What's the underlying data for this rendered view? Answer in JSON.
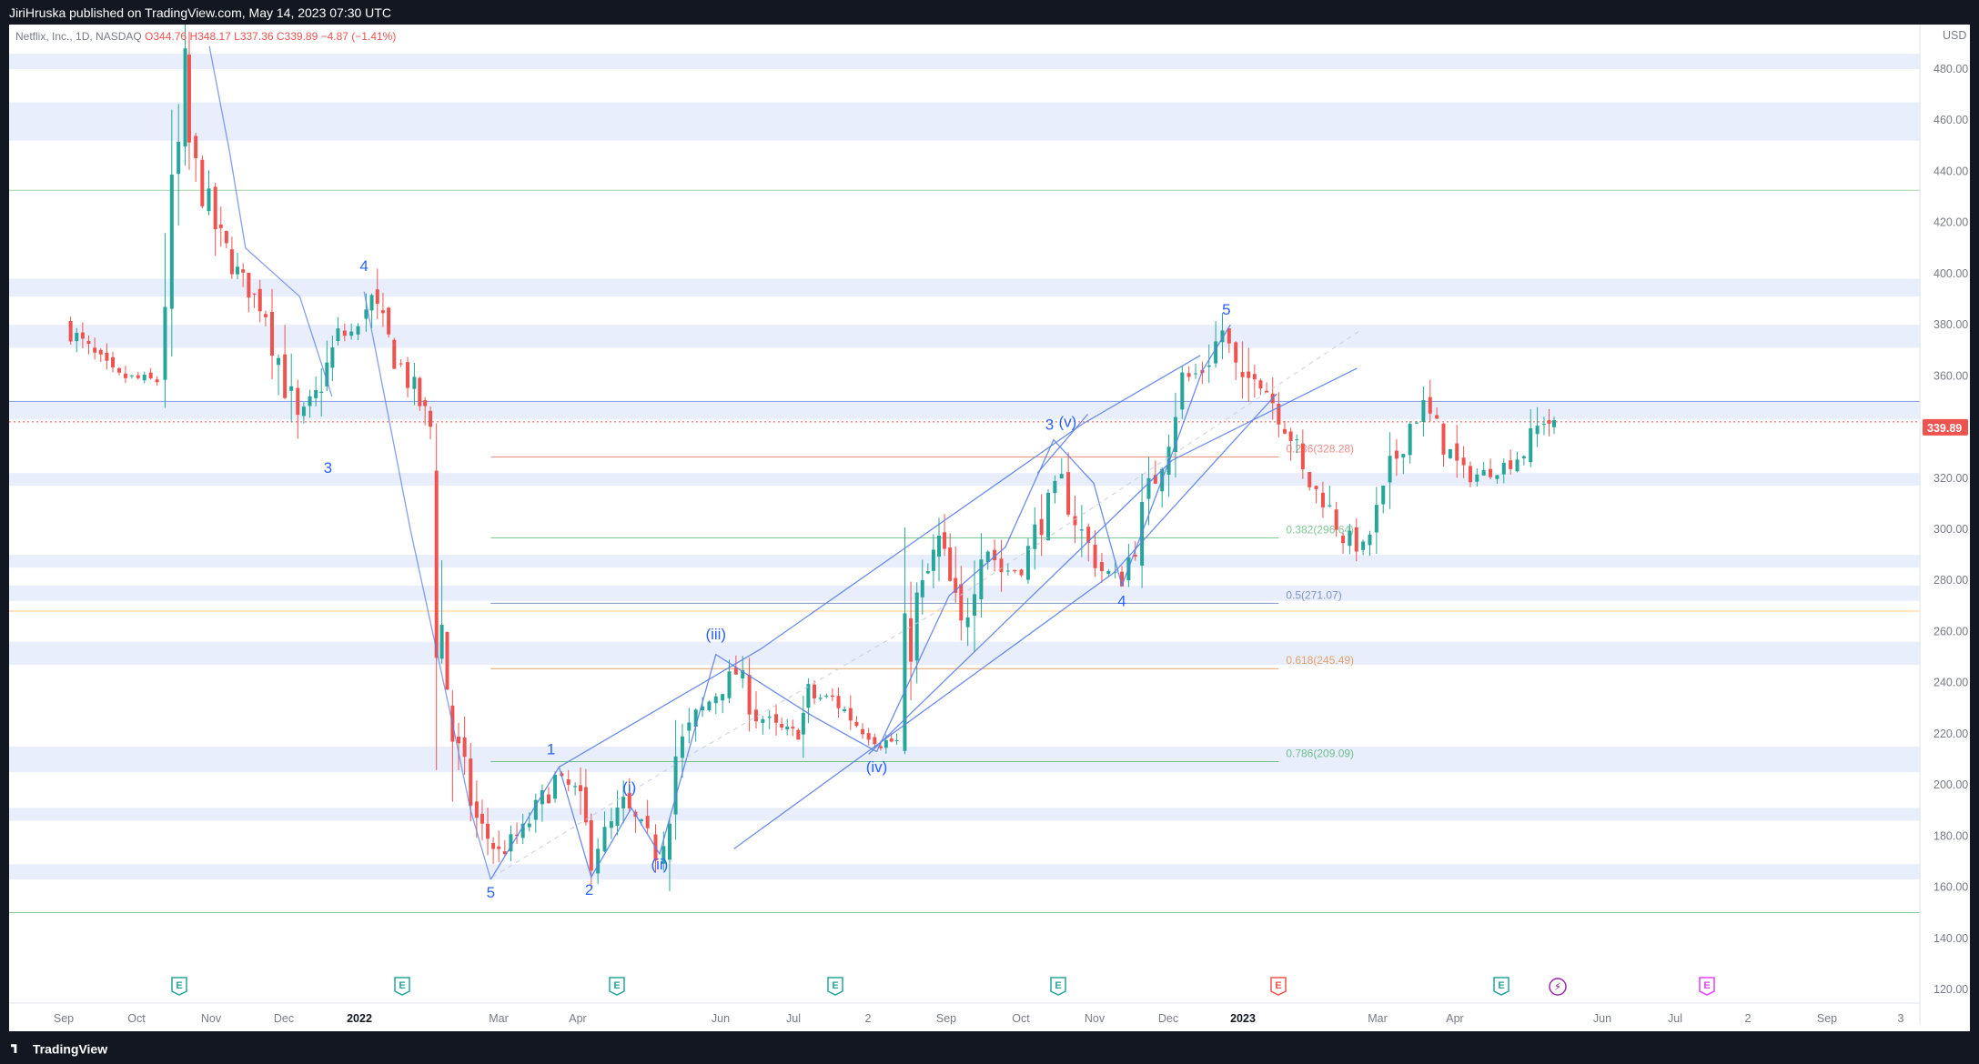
{
  "header": {
    "publisher_line": "JiriHruska published on TradingView.com, May 14, 2023 07:30 UTC"
  },
  "legend": {
    "symbol": "Netflix, Inc., 1D, NASDAQ",
    "open": "O344.76",
    "high": "H348.17",
    "low": "L337.36",
    "close": "C339.89",
    "change": "−4.87 (−1.41%)"
  },
  "footer": {
    "brand": "TradingView"
  },
  "colors": {
    "up": "#26a69a",
    "down": "#ef5350",
    "zone": "#e8eefc",
    "wave": "#2962ff",
    "channel": "#5b7fe8"
  },
  "chart_data": {
    "type": "candlestick",
    "currency": "USD",
    "ylim": [
      115,
      489
    ],
    "y_ticks": [
      "480.00",
      "460.00",
      "440.00",
      "420.00",
      "400.00",
      "380.00",
      "360.00",
      "340.00",
      "320.00",
      "300.00",
      "280.00",
      "260.00",
      "240.00",
      "220.00",
      "200.00",
      "180.00",
      "160.00",
      "140.00",
      "120.00"
    ],
    "x_ticks": [
      "Sep",
      "Oct",
      "Nov",
      "Dec",
      "2022",
      "Mar",
      "Apr",
      "Jun",
      "Jul",
      "2",
      "Sep",
      "Oct",
      "Nov",
      "Dec",
      "2023",
      "Mar",
      "Apr",
      "Jun",
      "Jul",
      "2",
      "Sep",
      "3"
    ],
    "last_price": {
      "value": 339.89,
      "label": "339.89"
    },
    "price_path": [
      [
        0.0,
        380
      ],
      [
        2.4,
        360
      ],
      [
        4.6,
        358
      ],
      [
        5.0,
        398
      ],
      [
        6.0,
        470
      ],
      [
        6.2,
        448
      ],
      [
        7.5,
        418
      ],
      [
        8.6,
        400
      ],
      [
        10.0,
        385
      ],
      [
        11.6,
        340
      ],
      [
        12.5,
        352
      ],
      [
        13.6,
        375
      ],
      [
        14.6,
        378
      ],
      [
        15.0,
        395
      ],
      [
        16.4,
        368
      ],
      [
        17.4,
        354
      ],
      [
        18.2,
        340
      ],
      [
        18.5,
        281
      ],
      [
        19.3,
        220
      ],
      [
        20.5,
        186
      ],
      [
        21.6,
        173
      ],
      [
        22.8,
        182
      ],
      [
        24.4,
        202
      ],
      [
        25.4,
        198
      ],
      [
        26.2,
        174
      ],
      [
        27.2,
        184
      ],
      [
        27.8,
        192
      ],
      [
        29.0,
        179
      ],
      [
        29.4,
        174
      ],
      [
        29.8,
        182
      ],
      [
        30.4,
        212
      ],
      [
        31.4,
        226
      ],
      [
        32.4,
        236
      ],
      [
        33.4,
        244
      ],
      [
        34.4,
        228
      ],
      [
        35.4,
        222
      ],
      [
        36.5,
        220
      ],
      [
        37.0,
        234
      ],
      [
        38.2,
        234
      ],
      [
        39.4,
        224
      ],
      [
        40.6,
        217
      ],
      [
        41.4,
        217
      ],
      [
        41.8,
        245
      ],
      [
        42.4,
        270
      ],
      [
        43.5,
        295
      ],
      [
        44.6,
        260
      ],
      [
        45.6,
        298
      ],
      [
        46.6,
        284
      ],
      [
        47.6,
        284
      ],
      [
        48.6,
        305
      ],
      [
        49.6,
        318
      ],
      [
        50.6,
        298
      ],
      [
        51.6,
        284
      ],
      [
        52.6,
        280
      ],
      [
        53.6,
        305
      ],
      [
        54.6,
        330
      ],
      [
        55.6,
        358
      ],
      [
        56.6,
        362
      ],
      [
        57.6,
        378
      ],
      [
        58.6,
        352
      ],
      [
        59.2,
        365
      ],
      [
        59.8,
        355
      ],
      [
        61.0,
        337
      ],
      [
        61.6,
        320
      ],
      [
        62.6,
        312
      ],
      [
        63.6,
        298
      ],
      [
        64.6,
        292
      ],
      [
        65.6,
        312
      ],
      [
        66.6,
        338
      ],
      [
        67.6,
        348
      ],
      [
        68.6,
        334
      ],
      [
        69.6,
        320
      ],
      [
        70.6,
        322
      ],
      [
        71.6,
        325
      ],
      [
        72.6,
        330
      ],
      [
        73.6,
        344
      ],
      [
        74.1,
        339.89
      ]
    ],
    "series": [
      {
        "name": "",
        "points": [
          [
            7.2,
            489
          ],
          [
            8.2,
            448
          ],
          [
            9.0,
            410
          ],
          [
            11.7,
            391
          ],
          [
            13.3,
            352
          ]
        ]
      },
      {
        "name": "",
        "points": [
          [
            14.9,
            393
          ],
          [
            17.2,
            300
          ],
          [
            18.3,
            260
          ],
          [
            19.3,
            224
          ],
          [
            20.2,
            190
          ],
          [
            21.2,
            163
          ]
        ]
      },
      {
        "name": "",
        "points": [
          [
            21.2,
            163
          ],
          [
            24.6,
            207
          ],
          [
            26.2,
            164
          ],
          [
            28.2,
            191
          ],
          [
            29.6,
            173
          ],
          [
            32.4,
            251
          ],
          [
            34.4,
            241
          ],
          [
            37.2,
            227
          ],
          [
            40.4,
            213
          ]
        ]
      },
      {
        "name": "",
        "points": [
          [
            40.4,
            213
          ],
          [
            44.0,
            274
          ],
          [
            46.8,
            293
          ],
          [
            49.2,
            335
          ],
          [
            51.2,
            318
          ],
          [
            52.6,
            278
          ],
          [
            55.4,
            336
          ],
          [
            56.6,
            362
          ],
          [
            58.0,
            380
          ]
        ]
      },
      {
        "name": "",
        "points": [
          [
            24.6,
            207
          ],
          [
            34.6,
            253
          ],
          [
            50.6,
            341
          ],
          [
            56.5,
            368
          ]
        ]
      },
      {
        "name": "",
        "points": [
          [
            33.3,
            175
          ],
          [
            52.2,
            283
          ],
          [
            60.3,
            353
          ]
        ]
      },
      {
        "name": "",
        "points": [
          [
            40.0,
            212
          ],
          [
            55.1,
            327
          ],
          [
            64.3,
            363
          ]
        ]
      },
      {
        "name": "",
        "points": [
          [
            48.4,
            322
          ],
          [
            50.9,
            345
          ]
        ]
      },
      {
        "name": "",
        "points": [
          [
            21.3,
            164
          ],
          [
            31.2,
            212
          ],
          [
            43.0,
            266
          ],
          [
            64.5,
            378
          ]
        ]
      }
    ],
    "annotations": [
      {
        "text": "4",
        "x": 14.9,
        "y": 401
      },
      {
        "text": "3",
        "x": 13.1,
        "y": 322
      },
      {
        "text": "5",
        "x": 21.2,
        "y": 156
      },
      {
        "text": "1",
        "x": 24.2,
        "y": 212
      },
      {
        "text": "2",
        "x": 26.1,
        "y": 157
      },
      {
        "text": "(i)",
        "x": 28.1,
        "y": 197
      },
      {
        "text": "(ii)",
        "x": 29.6,
        "y": 167
      },
      {
        "text": "(iii)",
        "x": 32.4,
        "y": 257
      },
      {
        "text": "(iv)",
        "x": 40.4,
        "y": 205
      },
      {
        "text": "3",
        "x": 49.0,
        "y": 339
      },
      {
        "text": "(v)",
        "x": 49.9,
        "y": 340
      },
      {
        "text": "4",
        "x": 52.6,
        "y": 270
      },
      {
        "text": "5",
        "x": 57.8,
        "y": 384
      }
    ],
    "horizontal_levels": [
      350.0,
      342.0,
      432.6,
      268.0,
      150.0
    ],
    "fibonacci": {
      "x_range": [
        21.2,
        60.4
      ],
      "levels": [
        {
          "ratio": "0.236",
          "label": "0.236(328.28)",
          "price": 328.28,
          "color": "#ef8f88"
        },
        {
          "ratio": "0.382",
          "label": "0.382(296.64)",
          "price": 296.64,
          "color": "#81c995"
        },
        {
          "ratio": "0.5",
          "label": "0.5(271.07)",
          "price": 271.07,
          "color": "#7e93c4"
        },
        {
          "ratio": "0.618",
          "label": "0.618(245.49)",
          "price": 245.49,
          "color": "#e0a26a"
        },
        {
          "ratio": "0.786",
          "label": "0.786(209.09)",
          "price": 209.09,
          "color": "#6fbf8e"
        }
      ]
    },
    "zones": [
      {
        "from": 486,
        "to": 480
      },
      {
        "from": 467,
        "to": 452
      },
      {
        "from": 398,
        "to": 391
      },
      {
        "from": 380,
        "to": 371
      },
      {
        "from": 350,
        "to": 343
      },
      {
        "from": 322,
        "to": 317
      },
      {
        "from": 290,
        "to": 285
      },
      {
        "from": 278,
        "to": 272
      },
      {
        "from": 256,
        "to": 247
      },
      {
        "from": 215,
        "to": 205
      },
      {
        "from": 191,
        "to": 186
      },
      {
        "from": 169,
        "to": 163
      }
    ],
    "events": [
      {
        "type": "earnings",
        "label": "E",
        "x": 3.4
      },
      {
        "type": "earnings",
        "label": "E",
        "x": 8.0
      },
      {
        "type": "earnings",
        "label": "E",
        "x": 12.5
      },
      {
        "type": "earnings",
        "label": "E",
        "x": 17.2
      },
      {
        "type": "earnings",
        "label": "E",
        "x": 22.0
      },
      {
        "type": "earnings_up",
        "label": "E",
        "x": 26.7
      },
      {
        "type": "earnings",
        "label": "E",
        "x": 31.3
      },
      {
        "type": "dividend",
        "label": "⚡",
        "x": 32.6
      },
      {
        "type": "earnings_future",
        "label": "E",
        "x": 35.5
      }
    ]
  }
}
